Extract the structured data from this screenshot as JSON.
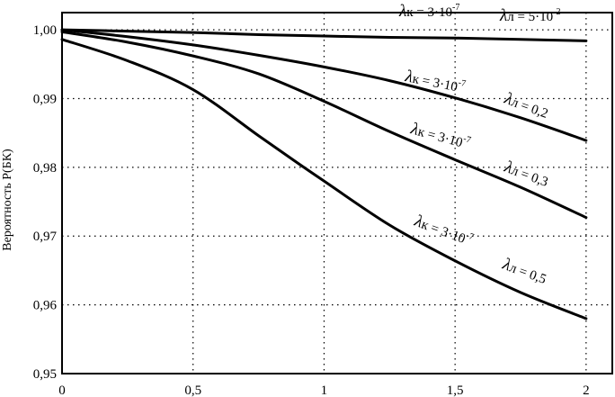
{
  "chart_data": {
    "type": "line",
    "title": "",
    "xlabel": "",
    "ylabel": "Вероятность P(БК)",
    "xlim": [
      0,
      2.1
    ],
    "ylim": [
      0.95,
      1.0025
    ],
    "xticks": [
      0,
      0.5,
      1,
      1.5,
      2
    ],
    "xtick_labels": [
      "0",
      "0,5",
      "1",
      "1,5",
      "2"
    ],
    "yticks": [
      0.95,
      0.96,
      0.97,
      0.98,
      0.99,
      1.0
    ],
    "ytick_labels": [
      "0,95",
      "0,96",
      "0,97",
      "0,98",
      "0,99",
      "1,00"
    ],
    "grid": "dotted",
    "series": [
      {
        "x": [
          0,
          0.25,
          0.5,
          0.75,
          1.0,
          1.25,
          1.5,
          1.75,
          2.0
        ],
        "y": [
          1.0,
          0.9998,
          0.9996,
          0.9993,
          0.9991,
          0.9989,
          0.9988,
          0.9986,
          0.9984
        ],
        "label": {
          "lk": "λк = 3·10",
          "lk_exp": "-7",
          "ll": "λл = 5·10",
          "ll_exp": "-2"
        }
      },
      {
        "x": [
          0,
          0.25,
          0.5,
          0.75,
          1.0,
          1.25,
          1.5,
          1.75,
          2.0
        ],
        "y": [
          1.0,
          0.999,
          0.9978,
          0.9963,
          0.9946,
          0.9926,
          0.9901,
          0.9872,
          0.9839
        ],
        "label": {
          "lk": "λк = 3·10",
          "lk_exp": "-7",
          "ll": "λл = 0,2"
        }
      },
      {
        "x": [
          0,
          0.25,
          0.5,
          0.75,
          1.0,
          1.25,
          1.5,
          1.75,
          2.0
        ],
        "y": [
          0.9997,
          0.9982,
          0.9962,
          0.9936,
          0.9896,
          0.9852,
          0.9811,
          0.9771,
          0.9727
        ],
        "label": {
          "lk": "λк = 3·10",
          "lk_exp": "-7",
          "ll": "λл = 0,3"
        }
      },
      {
        "x": [
          0,
          0.25,
          0.5,
          0.75,
          0.9,
          1.0,
          1.25,
          1.5,
          1.75,
          2.0
        ],
        "y": [
          0.9986,
          0.9955,
          0.9913,
          0.9846,
          0.9806,
          0.978,
          0.9716,
          0.9664,
          0.9618,
          0.958
        ],
        "label": {
          "lk": "λк = 3·10",
          "lk_exp": "-7",
          "ll": "λл = 0,5"
        }
      }
    ]
  }
}
